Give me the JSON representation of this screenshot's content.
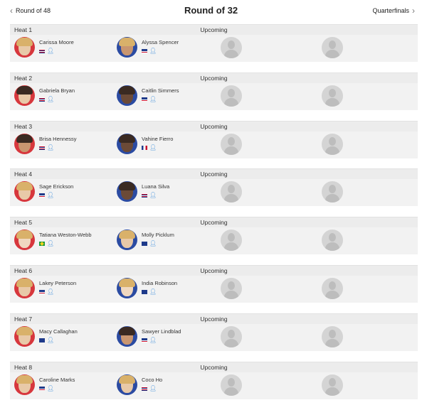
{
  "nav": {
    "prev_label": "Round of 48",
    "title": "Round of 32",
    "next_label": "Quarterfinals"
  },
  "heats": [
    {
      "name": "Heat 1",
      "status": "Upcoming",
      "surfers": [
        {
          "name": "Carissa Moore",
          "flag": "hawaii",
          "jersey": "red"
        },
        {
          "name": "Alyssa Spencer",
          "flag": "usa",
          "jersey": "blue"
        }
      ]
    },
    {
      "name": "Heat 2",
      "status": "Upcoming",
      "surfers": [
        {
          "name": "Gabriela Bryan",
          "flag": "hawaii",
          "jersey": "red"
        },
        {
          "name": "Caitlin Simmers",
          "flag": "usa",
          "jersey": "blue"
        }
      ]
    },
    {
      "name": "Heat 3",
      "status": "Upcoming",
      "surfers": [
        {
          "name": "Brisa Hennessy",
          "flag": "hawaii",
          "jersey": "red"
        },
        {
          "name": "Vahine Fierro",
          "flag": "france",
          "jersey": "blue"
        }
      ]
    },
    {
      "name": "Heat 4",
      "status": "Upcoming",
      "surfers": [
        {
          "name": "Sage Erickson",
          "flag": "usa",
          "jersey": "red"
        },
        {
          "name": "Luana Silva",
          "flag": "hawaii",
          "jersey": "blue"
        }
      ]
    },
    {
      "name": "Heat 5",
      "status": "Upcoming",
      "surfers": [
        {
          "name": "Tatiana Weston-Webb",
          "flag": "brazil",
          "jersey": "red"
        },
        {
          "name": "Molly Picklum",
          "flag": "australia",
          "jersey": "blue"
        }
      ]
    },
    {
      "name": "Heat 6",
      "status": "Upcoming",
      "surfers": [
        {
          "name": "Lakey Peterson",
          "flag": "usa",
          "jersey": "red"
        },
        {
          "name": "India Robinson",
          "flag": "australia",
          "jersey": "blue"
        }
      ]
    },
    {
      "name": "Heat 7",
      "status": "Upcoming",
      "surfers": [
        {
          "name": "Macy Callaghan",
          "flag": "australia",
          "jersey": "red"
        },
        {
          "name": "Sawyer Lindblad",
          "flag": "usa",
          "jersey": "blue"
        }
      ]
    },
    {
      "name": "Heat 8",
      "status": "Upcoming",
      "surfers": [
        {
          "name": "Caroline Marks",
          "flag": "usa",
          "jersey": "red"
        },
        {
          "name": "Coco Ho",
          "flag": "hawaii",
          "jersey": "blue"
        }
      ]
    }
  ],
  "colors": {
    "red_jersey": "#d7373d",
    "blue_jersey": "#2b4ba2",
    "header_bg": "#ececec",
    "row_bg": "#f2f2f2",
    "user_icon": "#3b8ddb"
  }
}
